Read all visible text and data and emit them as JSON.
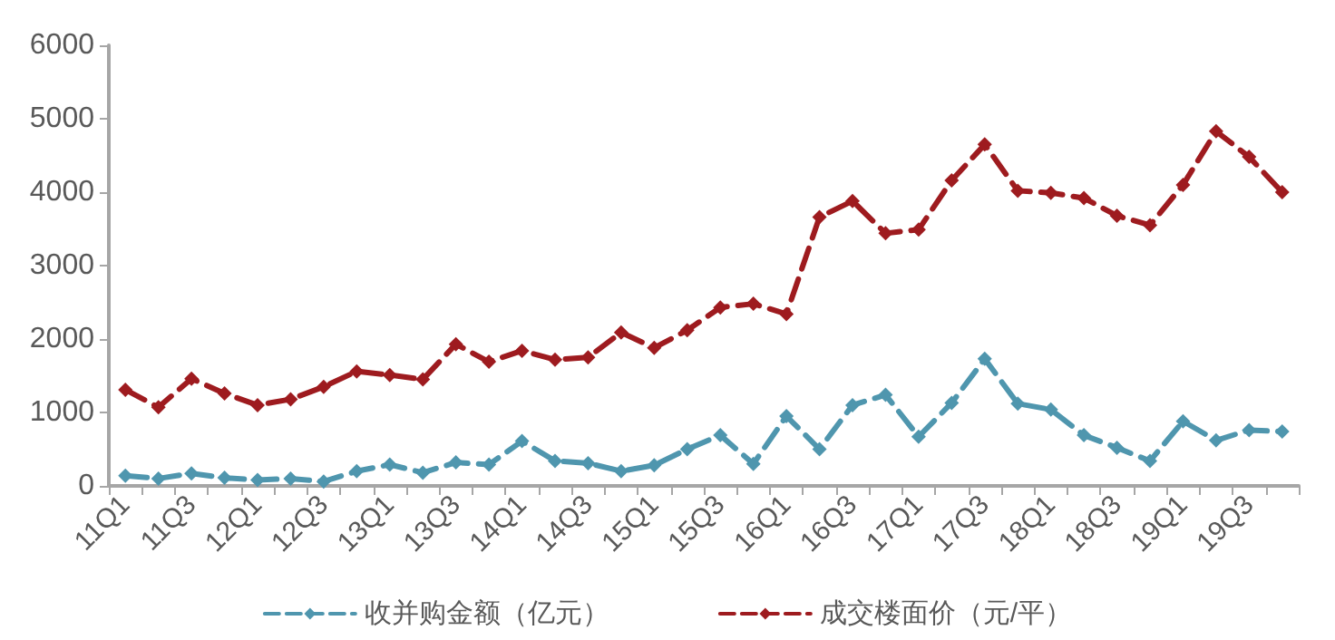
{
  "chart_data": {
    "type": "line",
    "categories": [
      "11Q1",
      null,
      "11Q3",
      null,
      "12Q1",
      null,
      "12Q3",
      null,
      "13Q1",
      null,
      "13Q3",
      null,
      "14Q1",
      null,
      "14Q3",
      null,
      "15Q1",
      null,
      "15Q3",
      null,
      "16Q1",
      null,
      "16Q3",
      null,
      "17Q1",
      null,
      "17Q3",
      null,
      "18Q1",
      null,
      "18Q3",
      null,
      "19Q1",
      null,
      "19Q3",
      null
    ],
    "series": [
      {
        "name": "收并购金额（亿元）",
        "color": "#4f96ae",
        "values": [
          140,
          100,
          170,
          110,
          80,
          100,
          60,
          200,
          290,
          180,
          320,
          290,
          610,
          340,
          310,
          200,
          280,
          500,
          690,
          300,
          950,
          500,
          1100,
          1240,
          670,
          1130,
          1730,
          1120,
          1040,
          690,
          520,
          340,
          880,
          620,
          760,
          740
        ]
      },
      {
        "name": "成交楼面价（元/平）",
        "color": "#9e1b1f",
        "values": [
          1310,
          1070,
          1460,
          1260,
          1100,
          1180,
          1350,
          1560,
          1510,
          1450,
          1930,
          1690,
          1840,
          1720,
          1750,
          2090,
          1880,
          2120,
          2430,
          2480,
          2340,
          3660,
          3880,
          3440,
          3490,
          4160,
          4650,
          4020,
          3990,
          3920,
          3680,
          3550,
          4100,
          4830,
          4480,
          4000
        ]
      }
    ],
    "ylim": [
      0,
      6000
    ],
    "yticks": [
      0,
      1000,
      2000,
      3000,
      4000,
      5000,
      6000
    ],
    "grid": false,
    "legend": "bottom",
    "marker": "diamond",
    "line_style": "dashed"
  }
}
